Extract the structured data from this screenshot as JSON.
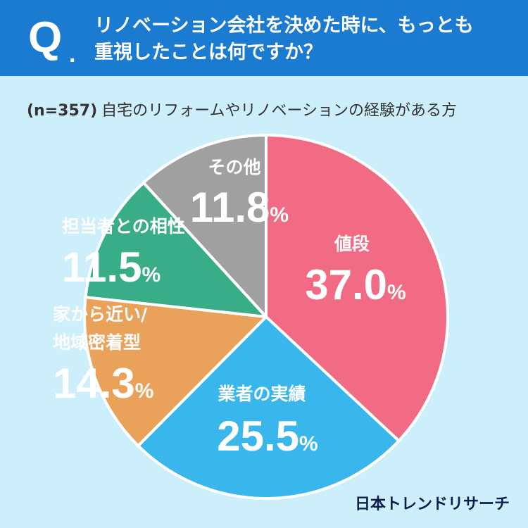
{
  "header": {
    "q_mark": "Q",
    "q_dot": ".",
    "question_line1": "リノベーション会社を決めた時に、もっとも",
    "question_line2": "重視したことは何ですか？"
  },
  "sample": {
    "n": "(n=357)",
    "description": "自宅のリフォームやリノベーションの経験がある方"
  },
  "brand": "日本トレンドリサーチ",
  "colors": {
    "header": "#1a7bd0",
    "background": "#cdeefb"
  },
  "chart_data": {
    "type": "pie",
    "unit": "%",
    "slices": [
      {
        "label": [
          "値段"
        ],
        "value": 37.0,
        "value_text": "37.0",
        "color": "#f26b85",
        "text_color": "#ffffff"
      },
      {
        "label": [
          "業者の実績"
        ],
        "value": 25.5,
        "value_text": "25.5",
        "color": "#39b7ed",
        "text_color": "#ffffff"
      },
      {
        "label": [
          "家から近い/",
          "地域密着型"
        ],
        "value": 14.3,
        "value_text": "14.3",
        "color": "#eaa25a",
        "text_color": "#ffffff"
      },
      {
        "label": [
          "担当者との相性"
        ],
        "value": 11.5,
        "value_text": "11.5",
        "color": "#38ad88",
        "text_color": "#ffffff"
      },
      {
        "label": [
          "その他"
        ],
        "value": 11.8,
        "value_text": "11.8",
        "color": "#a0a0a0",
        "text_color": "#ffffff"
      }
    ]
  }
}
